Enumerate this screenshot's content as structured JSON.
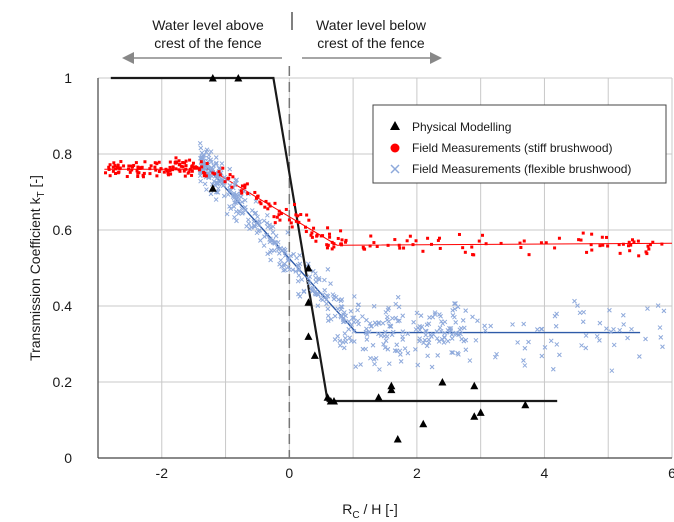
{
  "chart_data": {
    "type": "scatter",
    "xlabel": "R_C / H [-]",
    "xlabel_main": "R",
    "xlabel_sub": "C",
    "xlabel_rest": " / H [-]",
    "ylabel": "Transmission Coefficient k_T [-]",
    "ylabel_main": "Transmission Coefficient k",
    "ylabel_sub": "T",
    "ylabel_rest": " [-]",
    "xlim": [
      -3,
      6
    ],
    "ylim": [
      0,
      1
    ],
    "x_ticks": [
      -2,
      0,
      2,
      4,
      6
    ],
    "y_ticks": [
      0,
      0.2,
      0.4,
      0.6,
      0.8,
      1
    ],
    "x_tick_labels": [
      "-2",
      "0",
      "2",
      "4",
      "6"
    ],
    "y_tick_labels": [
      "0",
      "0.2",
      "0.4",
      "0.6",
      "0.8",
      "1"
    ],
    "grid": true,
    "legend_position": "top-right",
    "annotations": {
      "left_line1": "Water level above",
      "left_line2": "crest of the fence",
      "right_line1": "Water level below",
      "right_line2": "crest of the fence"
    },
    "vertical_reference_x": 0,
    "series": [
      {
        "name": "Physical Modelling",
        "marker": "triangle",
        "color": "#000000",
        "points": [
          [
            -1.2,
            1.0
          ],
          [
            -0.8,
            1.0
          ],
          [
            -1.2,
            0.71
          ],
          [
            0.3,
            0.5
          ],
          [
            0.3,
            0.41
          ],
          [
            0.3,
            0.32
          ],
          [
            0.4,
            0.27
          ],
          [
            0.6,
            0.16
          ],
          [
            0.65,
            0.15
          ],
          [
            0.7,
            0.15
          ],
          [
            1.4,
            0.16
          ],
          [
            1.6,
            0.18
          ],
          [
            1.6,
            0.19
          ],
          [
            1.7,
            0.05
          ],
          [
            2.1,
            0.09
          ],
          [
            2.4,
            0.2
          ],
          [
            2.9,
            0.11
          ],
          [
            2.9,
            0.19
          ],
          [
            3.0,
            0.12
          ],
          [
            3.7,
            0.14
          ]
        ],
        "trend_line": [
          [
            -2.8,
            1.0
          ],
          [
            -0.25,
            1.0
          ],
          [
            0.6,
            0.15
          ],
          [
            4.2,
            0.15
          ]
        ]
      },
      {
        "name": "Field Measurements (stiff brushwood)",
        "marker": "square",
        "color": "#ff0000",
        "trend_line": [
          [
            -2.9,
            0.76
          ],
          [
            -1.25,
            0.76
          ],
          [
            0.75,
            0.56
          ],
          [
            6.0,
            0.565
          ]
        ]
      },
      {
        "name": "Field Measurements (flexible brushwood)",
        "marker": "x",
        "color": "#8ea9db",
        "trend_line": [
          [
            -1.4,
            0.785
          ],
          [
            1.05,
            0.33
          ],
          [
            5.5,
            0.33
          ]
        ]
      }
    ]
  }
}
